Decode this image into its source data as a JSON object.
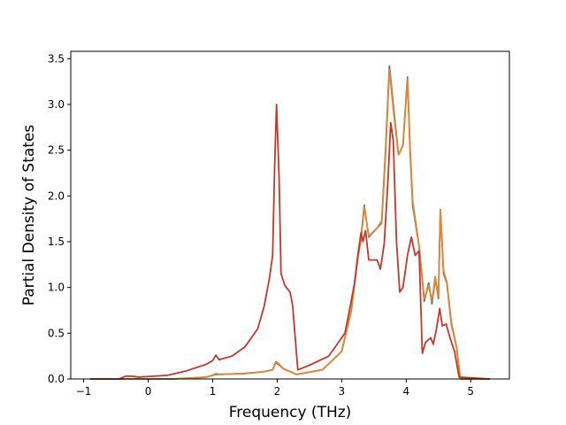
{
  "chart_data": {
    "type": "line",
    "title": "",
    "xlabel": "Frequency (THz)",
    "ylabel": "Partial Density of States",
    "xlim": [
      -1.2,
      5.6
    ],
    "ylim": [
      0.0,
      3.58
    ],
    "xticks": [
      -1,
      0,
      1,
      2,
      3,
      4,
      5
    ],
    "yticks": [
      0.0,
      0.5,
      1.0,
      1.5,
      2.0,
      2.5,
      3.0,
      3.5
    ],
    "ytick_labels": [
      "0.0",
      "0.5",
      "1.0",
      "1.5",
      "2.0",
      "2.5",
      "3.0",
      "3.5"
    ],
    "grid": false,
    "legend": "none",
    "series": [
      {
        "color": "#3a7ca5",
        "points": [
          [
            -0.9,
            0.0
          ],
          [
            0.4,
            0.0
          ],
          [
            0.9,
            0.02
          ],
          [
            1.0,
            0.04
          ],
          [
            1.05,
            0.05
          ],
          [
            1.1,
            0.05
          ],
          [
            1.5,
            0.06
          ],
          [
            1.8,
            0.08
          ],
          [
            1.93,
            0.1
          ],
          [
            1.98,
            0.18
          ],
          [
            2.02,
            0.16
          ],
          [
            2.1,
            0.11
          ],
          [
            2.3,
            0.05
          ],
          [
            2.7,
            0.1
          ],
          [
            3.0,
            0.3
          ],
          [
            3.15,
            0.75
          ],
          [
            3.25,
            1.35
          ],
          [
            3.3,
            1.55
          ],
          [
            3.35,
            1.9
          ],
          [
            3.42,
            1.55
          ],
          [
            3.55,
            1.65
          ],
          [
            3.62,
            1.72
          ],
          [
            3.68,
            2.5
          ],
          [
            3.74,
            3.42
          ],
          [
            3.8,
            3.0
          ],
          [
            3.88,
            2.45
          ],
          [
            3.95,
            2.55
          ],
          [
            4.02,
            3.3
          ],
          [
            4.06,
            2.5
          ],
          [
            4.1,
            1.9
          ],
          [
            4.2,
            1.45
          ],
          [
            4.28,
            0.85
          ],
          [
            4.35,
            1.05
          ],
          [
            4.4,
            0.82
          ],
          [
            4.45,
            1.1
          ],
          [
            4.5,
            0.88
          ],
          [
            4.53,
            1.85
          ],
          [
            4.58,
            1.15
          ],
          [
            4.63,
            1.05
          ],
          [
            4.7,
            0.6
          ],
          [
            4.78,
            0.35
          ],
          [
            4.84,
            0.0
          ],
          [
            5.3,
            0.0
          ]
        ]
      },
      {
        "color": "#e8842a",
        "points": [
          [
            -0.9,
            0.0
          ],
          [
            0.4,
            0.0
          ],
          [
            0.9,
            0.02
          ],
          [
            1.0,
            0.04
          ],
          [
            1.05,
            0.06
          ],
          [
            1.1,
            0.05
          ],
          [
            1.5,
            0.06
          ],
          [
            1.8,
            0.08
          ],
          [
            1.93,
            0.1
          ],
          [
            1.98,
            0.19
          ],
          [
            2.02,
            0.17
          ],
          [
            2.1,
            0.11
          ],
          [
            2.3,
            0.05
          ],
          [
            2.7,
            0.1
          ],
          [
            3.0,
            0.3
          ],
          [
            3.15,
            0.75
          ],
          [
            3.25,
            1.32
          ],
          [
            3.3,
            1.52
          ],
          [
            3.35,
            1.88
          ],
          [
            3.42,
            1.56
          ],
          [
            3.55,
            1.65
          ],
          [
            3.62,
            1.7
          ],
          [
            3.68,
            2.45
          ],
          [
            3.74,
            3.38
          ],
          [
            3.8,
            2.95
          ],
          [
            3.88,
            2.45
          ],
          [
            3.95,
            2.55
          ],
          [
            4.02,
            3.28
          ],
          [
            4.06,
            2.55
          ],
          [
            4.1,
            1.95
          ],
          [
            4.2,
            1.45
          ],
          [
            4.28,
            0.88
          ],
          [
            4.35,
            1.02
          ],
          [
            4.4,
            0.85
          ],
          [
            4.45,
            1.12
          ],
          [
            4.5,
            0.9
          ],
          [
            4.53,
            1.85
          ],
          [
            4.58,
            1.18
          ],
          [
            4.63,
            1.06
          ],
          [
            4.7,
            0.62
          ],
          [
            4.78,
            0.35
          ],
          [
            4.84,
            0.0
          ],
          [
            5.3,
            0.0
          ]
        ]
      },
      {
        "color": "#c0392b",
        "points": [
          [
            -0.9,
            0.0
          ],
          [
            -0.45,
            0.0
          ],
          [
            -0.35,
            0.03
          ],
          [
            -0.25,
            0.03
          ],
          [
            -0.15,
            0.02
          ],
          [
            0.3,
            0.04
          ],
          [
            0.6,
            0.09
          ],
          [
            0.9,
            0.16
          ],
          [
            1.0,
            0.2
          ],
          [
            1.05,
            0.26
          ],
          [
            1.1,
            0.21
          ],
          [
            1.3,
            0.25
          ],
          [
            1.5,
            0.35
          ],
          [
            1.7,
            0.55
          ],
          [
            1.8,
            0.8
          ],
          [
            1.88,
            1.1
          ],
          [
            1.93,
            1.35
          ],
          [
            1.96,
            2.3
          ],
          [
            1.99,
            3.0
          ],
          [
            2.03,
            2.2
          ],
          [
            2.06,
            1.15
          ],
          [
            2.12,
            1.02
          ],
          [
            2.2,
            0.95
          ],
          [
            2.24,
            0.8
          ],
          [
            2.32,
            0.1
          ],
          [
            2.5,
            0.15
          ],
          [
            2.8,
            0.25
          ],
          [
            3.05,
            0.5
          ],
          [
            3.12,
            0.75
          ],
          [
            3.2,
            1.05
          ],
          [
            3.27,
            1.45
          ],
          [
            3.3,
            1.6
          ],
          [
            3.33,
            1.5
          ],
          [
            3.37,
            1.62
          ],
          [
            3.42,
            1.3
          ],
          [
            3.55,
            1.3
          ],
          [
            3.6,
            1.2
          ],
          [
            3.66,
            1.48
          ],
          [
            3.72,
            2.2
          ],
          [
            3.76,
            2.8
          ],
          [
            3.8,
            2.6
          ],
          [
            3.85,
            1.5
          ],
          [
            3.9,
            0.95
          ],
          [
            3.95,
            1.0
          ],
          [
            4.02,
            1.35
          ],
          [
            4.08,
            1.55
          ],
          [
            4.14,
            1.35
          ],
          [
            4.2,
            1.4
          ],
          [
            4.25,
            0.28
          ],
          [
            4.3,
            0.4
          ],
          [
            4.38,
            0.45
          ],
          [
            4.42,
            0.38
          ],
          [
            4.47,
            0.55
          ],
          [
            4.52,
            0.77
          ],
          [
            4.56,
            0.58
          ],
          [
            4.62,
            0.6
          ],
          [
            4.68,
            0.45
          ],
          [
            4.75,
            0.3
          ],
          [
            4.82,
            0.02
          ],
          [
            5.3,
            0.0
          ]
        ]
      }
    ]
  }
}
